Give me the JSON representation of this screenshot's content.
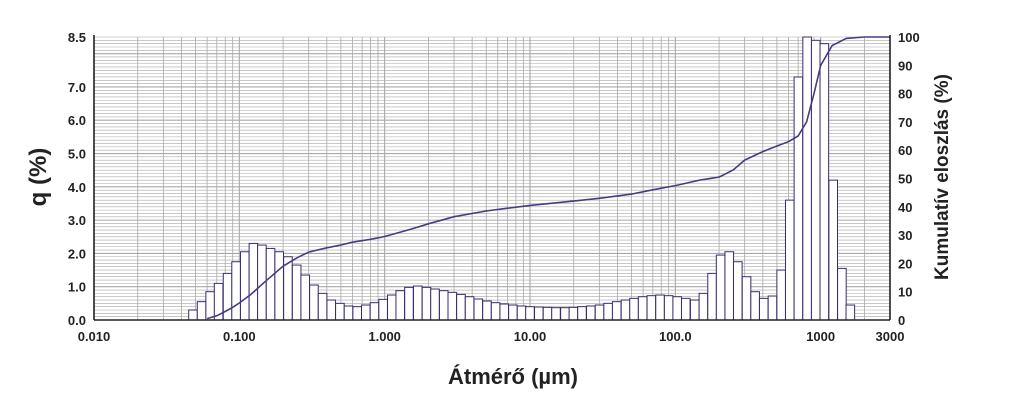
{
  "chart_data": {
    "type": "bar",
    "title": "",
    "xlabel": "Átmérő (µm)",
    "ylabel": "q (%)",
    "y2label": "Kumulatív eloszlás (%)",
    "x_scale": "log",
    "xlim": [
      0.01,
      3000
    ],
    "ylim": [
      0,
      8.5
    ],
    "y2lim": [
      0,
      100
    ],
    "grid": true,
    "x_ticks": [
      "0.010",
      "0.100",
      "1.000",
      "10.00",
      "100.0",
      "1000",
      "3000"
    ],
    "y_ticks": [
      "0.0",
      "1.0",
      "2.0",
      "3.0",
      "4.0",
      "5.0",
      "6.0",
      "7.0",
      "8.5"
    ],
    "y2_ticks": [
      "0",
      "10",
      "20",
      "30",
      "40",
      "50",
      "60",
      "70",
      "80",
      "90",
      "100"
    ],
    "colors": {
      "bars": "#3d2a6e",
      "curve": "#4a3a82",
      "grid": "#a8a8a8"
    },
    "series": [
      {
        "type": "bar",
        "x": [
          0.048,
          0.055,
          0.063,
          0.072,
          0.083,
          0.095,
          0.109,
          0.125,
          0.143,
          0.164,
          0.188,
          0.216,
          0.248,
          0.284,
          0.326,
          0.374,
          0.429,
          0.492,
          0.564,
          0.647,
          0.742,
          0.851,
          0.976,
          1.12,
          1.28,
          1.47,
          1.69,
          1.94,
          2.22,
          2.55,
          2.92,
          3.35,
          3.84,
          4.41,
          5.06,
          5.8,
          6.65,
          7.63,
          8.75,
          10.0,
          11.5,
          13.2,
          15.1,
          17.4,
          19.9,
          22.8,
          26.2,
          30.1,
          34.5,
          39.5,
          45.4,
          52.0,
          59.6,
          68.4,
          78.5,
          90.0,
          103,
          118,
          136,
          156,
          179,
          205,
          235,
          269,
          309,
          354,
          406,
          466,
          535,
          613,
          703,
          807,
          925,
          1060,
          1220,
          1400,
          1600
        ],
        "values": [
          0.3,
          0.55,
          0.85,
          1.1,
          1.4,
          1.75,
          2.05,
          2.3,
          2.25,
          2.15,
          2.05,
          1.9,
          1.65,
          1.35,
          1.05,
          0.8,
          0.6,
          0.5,
          0.42,
          0.4,
          0.45,
          0.52,
          0.62,
          0.75,
          0.88,
          0.98,
          1.02,
          0.98,
          0.93,
          0.88,
          0.83,
          0.77,
          0.7,
          0.63,
          0.57,
          0.52,
          0.48,
          0.45,
          0.42,
          0.4,
          0.39,
          0.38,
          0.37,
          0.37,
          0.38,
          0.4,
          0.42,
          0.45,
          0.5,
          0.55,
          0.6,
          0.65,
          0.7,
          0.73,
          0.75,
          0.73,
          0.7,
          0.65,
          0.6,
          0.8,
          1.4,
          1.95,
          2.05,
          1.75,
          1.3,
          0.85,
          0.65,
          0.72,
          1.5,
          3.6,
          7.3,
          8.5,
          8.4,
          8.3,
          4.2,
          1.55,
          0.45
        ]
      },
      {
        "type": "line",
        "axis": "right",
        "x": [
          0.06,
          0.07,
          0.08,
          0.09,
          0.1,
          0.12,
          0.15,
          0.2,
          0.25,
          0.3,
          0.4,
          0.5,
          0.6,
          0.8,
          1.0,
          1.5,
          2.0,
          3.0,
          5.0,
          7.0,
          10.0,
          20.0,
          30.0,
          50.0,
          70.0,
          100.0,
          150.0,
          200.0,
          250.0,
          300.0,
          400.0,
          500.0,
          600.0,
          700.0,
          800.0,
          900.0,
          1000.0,
          1200.0,
          1500.0,
          2000.0,
          3000.0
        ],
        "values": [
          0.5,
          1.5,
          3.0,
          4.5,
          6.0,
          9.0,
          13.5,
          19.0,
          22.0,
          24.0,
          25.5,
          26.5,
          27.5,
          28.5,
          29.5,
          32.0,
          34.0,
          36.5,
          38.5,
          39.5,
          40.5,
          42.0,
          43.0,
          44.5,
          46.0,
          47.5,
          49.5,
          50.5,
          53.0,
          56.5,
          59.5,
          61.5,
          63.0,
          65.0,
          70.0,
          80.0,
          90.0,
          97.0,
          99.5,
          100,
          100
        ]
      }
    ]
  }
}
